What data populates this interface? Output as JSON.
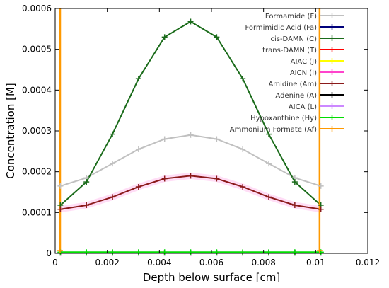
{
  "chart_data": {
    "type": "line",
    "title": "",
    "xlabel": "Depth below surface [cm]",
    "ylabel": "Concentration [M]",
    "xlim": [
      0,
      0.012
    ],
    "ylim": [
      0,
      0.0006
    ],
    "xticks": [
      0,
      0.002,
      0.004,
      0.006,
      0.008,
      0.01,
      0.012
    ],
    "xtick_labels": [
      "0",
      "0.002",
      "0.004",
      "0.006",
      "0.008",
      "0.01",
      "0.012"
    ],
    "yticks": [
      0,
      0.0001,
      0.0002,
      0.0003,
      0.0004,
      0.0005,
      0.0006
    ],
    "ytick_labels": [
      "0",
      "0.0001",
      "0.0002",
      "0.0003",
      "0.0004",
      "0.0005",
      "0.0006"
    ],
    "grid": false,
    "legend_position": "top-right",
    "x": [
      0.0002,
      0.0012,
      0.0022,
      0.0032,
      0.0042,
      0.0052,
      0.0062,
      0.0072,
      0.0082,
      0.0092,
      0.0102
    ],
    "series": [
      {
        "name": "Formamide (F)",
        "color": "#c0c0c0",
        "values": [
          0.000165,
          0.000185,
          0.00022,
          0.000255,
          0.00028,
          0.00029,
          0.00028,
          0.000255,
          0.00022,
          0.000185,
          0.000165
        ]
      },
      {
        "name": "Formimidic Acid (Fa)",
        "color": "#00007a",
        "values": [
          2e-06,
          2e-06,
          2e-06,
          2e-06,
          2e-06,
          2e-06,
          2e-06,
          2e-06,
          2e-06,
          2e-06,
          2e-06
        ]
      },
      {
        "name": "cis-DAMN (C)",
        "color": "#1a6b1a",
        "values": [
          0.000118,
          0.000175,
          0.000292,
          0.000428,
          0.00053,
          0.000568,
          0.00053,
          0.000428,
          0.000292,
          0.000175,
          0.000118
        ]
      },
      {
        "name": "trans-DAMN (T)",
        "color": "#ff0000",
        "values": [
          1e-06,
          1e-06,
          1e-06,
          1e-06,
          1e-06,
          1e-06,
          1e-06,
          1e-06,
          1e-06,
          1e-06,
          1e-06
        ]
      },
      {
        "name": "AIAC (J)",
        "color": "#ffff00",
        "values": [
          1e-06,
          1e-06,
          1e-06,
          1e-06,
          1e-06,
          1e-06,
          1e-06,
          1e-06,
          1e-06,
          1e-06,
          1e-06
        ]
      },
      {
        "name": "AICN (I)",
        "color": "#ff44cc",
        "values": [
          2e-06,
          2e-06,
          2e-06,
          2e-06,
          2e-06,
          2e-06,
          2e-06,
          2e-06,
          2e-06,
          2e-06,
          2e-06
        ]
      },
      {
        "name": "Amidine (Am)",
        "color": "#8b1a1a",
        "values": [
          0.000108,
          0.000118,
          0.000138,
          0.000163,
          0.000183,
          0.00019,
          0.000183,
          0.000163,
          0.000138,
          0.000118,
          0.000108
        ]
      },
      {
        "name": "Adenine (A)",
        "color": "#000000",
        "values": [
          1e-06,
          1e-06,
          1e-06,
          1e-06,
          1e-06,
          1e-06,
          1e-06,
          1e-06,
          1e-06,
          1e-06,
          1e-06
        ]
      },
      {
        "name": "AICA (L)",
        "color": "#cc88ff",
        "values": [
          1e-06,
          1e-06,
          1e-06,
          1e-06,
          1e-06,
          1e-06,
          1e-06,
          1e-06,
          1e-06,
          1e-06,
          1e-06
        ]
      },
      {
        "name": "Hypoxanthine (Hy)",
        "color": "#00dd00",
        "values": [
          3e-06,
          3e-06,
          3e-06,
          3e-06,
          3e-06,
          3e-06,
          3e-06,
          3e-06,
          3e-06,
          3e-06,
          3e-06
        ]
      },
      {
        "name": "Ammonium Formate (Af)",
        "color": "#ff9900",
        "values": [
          null,
          null,
          null,
          null,
          null,
          null,
          null,
          null,
          null,
          null,
          null
        ]
      }
    ],
    "vertical_lines": [
      {
        "series": "Ammonium Formate (Af)",
        "x": 0.00019,
        "from": 0,
        "to": 0.0006
      },
      {
        "series": "Ammonium Formate (Af)",
        "x": 0.01015,
        "from": 0,
        "to": 0.0006
      }
    ],
    "band": {
      "series": "AICN (I)",
      "under_series": "Amidine (Am)",
      "color": "#ff44cc"
    }
  }
}
